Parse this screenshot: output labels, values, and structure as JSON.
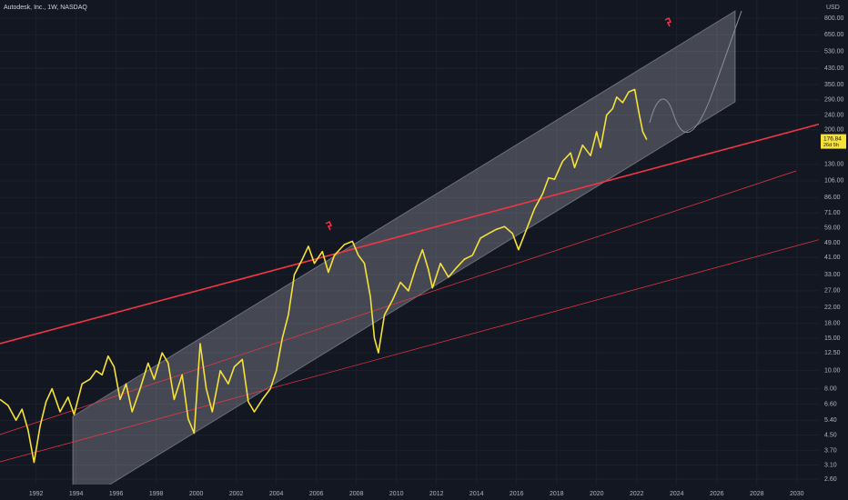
{
  "chart_data": {
    "type": "line",
    "title": "Autodesk, Inc., 1W, NASDAQ",
    "y_axis_label": "USD",
    "log_scale": true,
    "grid": true,
    "color": "#f5e13a",
    "x": [
      1990.2,
      1990.6,
      1991.0,
      1991.3,
      1991.6,
      1991.9,
      1992.2,
      1992.5,
      1992.8,
      1993.2,
      1993.6,
      1993.9,
      1994.3,
      1994.7,
      1995.0,
      1995.3,
      1995.6,
      1995.9,
      1996.2,
      1996.5,
      1996.8,
      1997.2,
      1997.6,
      1997.9,
      1998.3,
      1998.6,
      1998.9,
      1999.3,
      1999.6,
      1999.9,
      2000.2,
      2000.5,
      2000.8,
      2001.2,
      2001.6,
      2001.9,
      2002.3,
      2002.6,
      2002.9,
      2003.3,
      2003.7,
      2004.0,
      2004.3,
      2004.6,
      2004.9,
      2005.3,
      2005.6,
      2005.9,
      2006.3,
      2006.6,
      2006.9,
      2007.4,
      2007.8,
      2008.1,
      2008.4,
      2008.7,
      2008.9,
      2009.1,
      2009.4,
      2009.8,
      2010.2,
      2010.6,
      2011.0,
      2011.3,
      2011.6,
      2011.8,
      2012.2,
      2012.6,
      2013.0,
      2013.4,
      2013.8,
      2014.2,
      2014.6,
      2015.0,
      2015.4,
      2015.8,
      2016.1,
      2016.5,
      2016.9,
      2017.3,
      2017.6,
      2017.9,
      2018.3,
      2018.7,
      2018.9,
      2019.3,
      2019.7,
      2020.0,
      2020.2,
      2020.5,
      2020.8,
      2021.0,
      2021.3,
      2021.6,
      2021.9,
      2022.1,
      2022.3,
      2022.5
    ],
    "values": [
      7.0,
      6.5,
      5.4,
      6.2,
      4.8,
      3.2,
      5.0,
      6.8,
      8.0,
      6.0,
      7.2,
      5.8,
      8.5,
      9.0,
      10.0,
      9.5,
      12.0,
      10.5,
      7.0,
      8.5,
      6.0,
      8.0,
      11.0,
      9.0,
      12.5,
      11.0,
      7.0,
      9.5,
      5.5,
      4.6,
      14.0,
      8.0,
      6.0,
      10.0,
      8.5,
      10.5,
      11.5,
      6.8,
      6.0,
      7.0,
      8.0,
      10.0,
      15.0,
      20.0,
      33.0,
      40.0,
      47.0,
      38.0,
      44.0,
      34.0,
      42.0,
      48.0,
      50.0,
      42.0,
      38.0,
      25.0,
      15.0,
      12.5,
      20.0,
      24.0,
      30.0,
      27.0,
      37.0,
      45.0,
      35.0,
      28.0,
      38.0,
      32.0,
      36.0,
      40.0,
      42.0,
      52.0,
      55.0,
      58.0,
      60.0,
      55.0,
      45.0,
      58.0,
      75.0,
      90.0,
      110.0,
      108.0,
      135.0,
      150.0,
      125.0,
      165.0,
      145.0,
      195.0,
      160.0,
      240.0,
      260.0,
      300.0,
      280.0,
      320.0,
      330.0,
      250.0,
      195.0,
      176.84
    ],
    "last_price": 176.84,
    "countdown": "26d 5h",
    "xlim": [
      1990.2,
      2031.1
    ],
    "xticks": [
      1992,
      1994,
      1996,
      1998,
      2000,
      2002,
      2004,
      2006,
      2008,
      2010,
      2012,
      2014,
      2016,
      2018,
      2020,
      2022,
      2024,
      2026,
      2028,
      2030
    ],
    "ylim": [
      2.43,
      1003
    ],
    "yticks": [
      {
        "value": 800,
        "label": "800.00"
      },
      {
        "value": 650,
        "label": "650.00"
      },
      {
        "value": 530,
        "label": "530.00"
      },
      {
        "value": 430,
        "label": "430.00"
      },
      {
        "value": 350,
        "label": "350.00"
      },
      {
        "value": 290,
        "label": "290.00"
      },
      {
        "value": 240,
        "label": "240.00"
      },
      {
        "value": 200,
        "label": "200.00"
      },
      {
        "value": 130,
        "label": "130.00"
      },
      {
        "value": 106,
        "label": "106.00"
      },
      {
        "value": 86,
        "label": "86.00"
      },
      {
        "value": 71,
        "label": "71.00"
      },
      {
        "value": 59,
        "label": "59.00"
      },
      {
        "value": 49,
        "label": "49.00"
      },
      {
        "value": 41,
        "label": "41.00"
      },
      {
        "value": 33,
        "label": "33.00"
      },
      {
        "value": 27,
        "label": "27.00"
      },
      {
        "value": 22,
        "label": "22.00"
      },
      {
        "value": 18,
        "label": "18.00"
      },
      {
        "value": 15,
        "label": "15.00"
      },
      {
        "value": 12.5,
        "label": "12.50"
      },
      {
        "value": 10,
        "label": "10.00"
      },
      {
        "value": 8,
        "label": "8.00"
      },
      {
        "value": 6.6,
        "label": "6.60"
      },
      {
        "value": 5.4,
        "label": "5.40"
      },
      {
        "value": 4.5,
        "label": "4.50"
      },
      {
        "value": 3.7,
        "label": "3.70"
      },
      {
        "value": 3.1,
        "label": "3.10"
      },
      {
        "value": 2.6,
        "label": "2.60"
      }
    ]
  }
}
